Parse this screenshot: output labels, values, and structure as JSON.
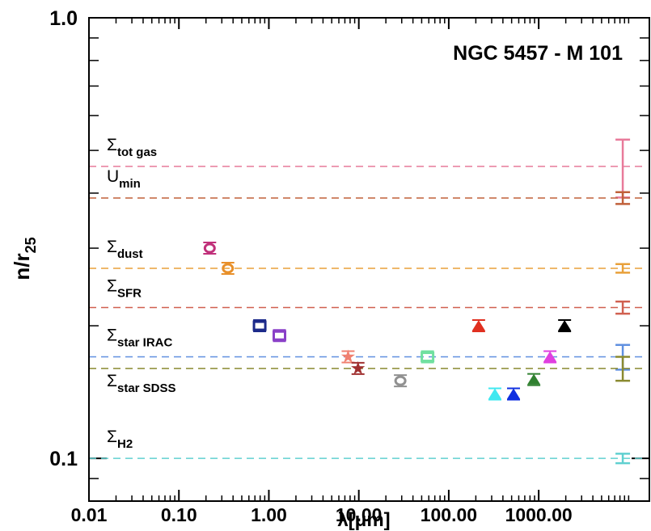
{
  "chart_data": {
    "type": "scatter",
    "title": "NGC 5457 - M 101",
    "xlabel": "λ[μm]",
    "ylabel": "n/r",
    "ylabel_subscript": "25",
    "xlog": true,
    "ylog": true,
    "xlim": [
      0.01,
      17000
    ],
    "ylim": [
      0.08,
      1.0
    ],
    "xticks": [
      0.01,
      {
        "value": 0.1,
        "label": "0.10"
      },
      {
        "value": 1,
        "label": "1.00"
      },
      {
        "value": 10,
        "label": "10.00"
      },
      {
        "value": 100,
        "label": "100.00"
      },
      {
        "value": 1000,
        "label": "1000.00"
      }
    ],
    "yticks": [
      0.1,
      {
        "value": 1,
        "label": "1.0"
      }
    ],
    "xminorticks": [
      0.02,
      0.03,
      0.04,
      0.05,
      0.06,
      0.07,
      0.08,
      0.09,
      0.2,
      0.3,
      0.4,
      0.5,
      0.6,
      0.7,
      0.8,
      0.9,
      2,
      3,
      4,
      5,
      6,
      7,
      8,
      9,
      20,
      30,
      40,
      50,
      60,
      70,
      80,
      90,
      200,
      300,
      400,
      500,
      600,
      700,
      800,
      900,
      2000,
      3000,
      4000,
      5000,
      6000,
      7000,
      8000,
      9000,
      10000
    ],
    "yminorticks": [
      0.09,
      0.2,
      0.3,
      0.4,
      0.5,
      0.6,
      0.7,
      0.8,
      0.9
    ],
    "points": {
      "x": [
        0.22,
        0.35,
        0.79,
        1.31,
        7.6,
        9.8,
        29,
        58,
        215,
        326,
        525,
        883,
        1336,
        1940
      ],
      "values": [
        0.3,
        0.27,
        0.2,
        0.19,
        0.17,
        0.16,
        0.15,
        0.17,
        0.2,
        0.14,
        0.14,
        0.151,
        0.17,
        0.2
      ],
      "colors": [
        "#c0307a",
        "#e8902a",
        "#1c2a8a",
        "#8a40c8",
        "#f08070",
        "#a03030",
        "#909090",
        "#70e0a0",
        "#e03020",
        "#40e8f0",
        "#1030e0",
        "#308030",
        "#e040e0",
        "#000000"
      ],
      "markers": [
        "circle",
        "circle",
        "square",
        "square",
        "star",
        "star",
        "circle",
        "square",
        "triangle",
        "triangle",
        "triangle",
        "triangle",
        "triangle",
        "triangle"
      ]
    },
    "errorbar_x": 8600,
    "hlines": [
      {
        "symbol": "Σ",
        "subscript": "tot gas",
        "value": 0.46,
        "err": 0.069,
        "color": "#e87a9a"
      },
      {
        "symbol": "U",
        "subscript": "min",
        "value": 0.39,
        "err": 0.012,
        "color": "#c0603a"
      },
      {
        "symbol": "Σ",
        "subscript": "dust",
        "value": 0.27,
        "err": 0.006,
        "color": "#e8a03a"
      },
      {
        "symbol": "Σ",
        "subscript": "SFR",
        "value": 0.22,
        "err": 0.007,
        "color": "#d06050"
      },
      {
        "symbol": "Σ",
        "subscript": "star IRAC",
        "value": 0.17,
        "err": 0.011,
        "color": "#6090e0"
      },
      {
        "symbol": "Σ",
        "subscript": "star SDSS",
        "value": 0.16,
        "err": 0.01,
        "color": "#8a8a30"
      },
      {
        "symbol": "Σ",
        "subscript": "H2",
        "value": 0.1,
        "err": 0.0025,
        "color": "#60d0d0"
      }
    ]
  }
}
